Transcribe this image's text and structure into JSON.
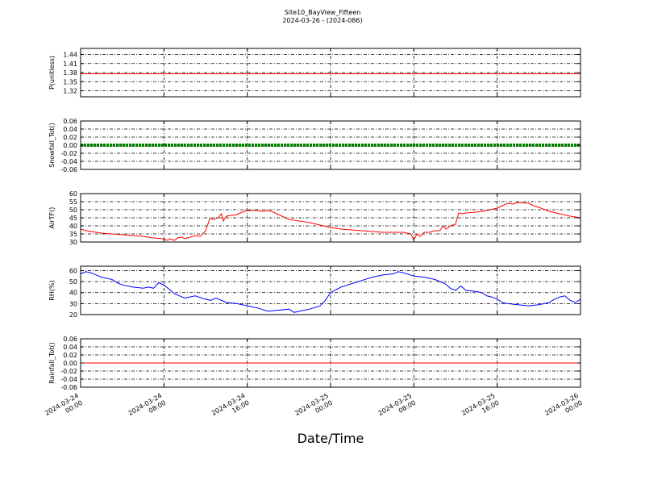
{
  "title": "Site10_BayView_Fifteen",
  "subtitle": "2024-03-26 - (2024-086)",
  "xlabel": "Date/Time",
  "chart_data": {
    "type": "line",
    "x_ticks": [
      [
        "2024-03-24",
        "00:00"
      ],
      [
        "2024-03-24",
        "08:00"
      ],
      [
        "2024-03-24",
        "16:00"
      ],
      [
        "2024-03-25",
        "00:00"
      ],
      [
        "2024-03-25",
        "08:00"
      ],
      [
        "2024-03-25",
        "16:00"
      ],
      [
        "2024-03-26",
        "00:00"
      ]
    ],
    "x_range_hours": [
      0,
      48
    ],
    "grid": true,
    "panels": [
      {
        "ylabel": "P(unitless)",
        "color": "#ff0000",
        "marker": "line",
        "ylim": [
          1.3,
          1.46
        ],
        "yticks": [
          "1.44",
          "1.41",
          "1.38",
          "1.35",
          "1.32"
        ],
        "ytick_values": [
          1.44,
          1.41,
          1.38,
          1.35,
          1.32
        ],
        "gridlines": [
          1.44,
          1.41,
          1.38,
          1.35,
          1.32
        ],
        "points": [
          [
            0,
            1.376
          ],
          [
            48,
            1.376
          ]
        ]
      },
      {
        "ylabel": "Snowfall_Tot()",
        "color": "#008000",
        "marker": "thick",
        "ylim": [
          -0.06,
          0.06
        ],
        "yticks": [
          "0.06",
          "0.04",
          "0.02",
          "0.00",
          "-0.02",
          "-0.04",
          "-0.06"
        ],
        "ytick_values": [
          0.06,
          0.04,
          0.02,
          0.0,
          -0.02,
          -0.04,
          -0.06
        ],
        "gridlines": [
          0.04,
          0.02,
          0.0,
          -0.02,
          -0.04
        ],
        "points": [
          [
            0,
            0
          ],
          [
            48,
            0
          ]
        ]
      },
      {
        "ylabel": "AirTF()",
        "color": "#ff0000",
        "marker": "line",
        "ylim": [
          30,
          60
        ],
        "yticks": [
          "60",
          "55",
          "50",
          "45",
          "40",
          "35",
          "30"
        ],
        "ytick_values": [
          60,
          55,
          50,
          45,
          40,
          35,
          30
        ],
        "gridlines": [
          55,
          50,
          45,
          40,
          35
        ],
        "points": [
          [
            0,
            38
          ],
          [
            0.5,
            37
          ],
          [
            1,
            36.5
          ],
          [
            2,
            35.5
          ],
          [
            3,
            35
          ],
          [
            4,
            34.5
          ],
          [
            5,
            34
          ],
          [
            6,
            33.5
          ],
          [
            7,
            32.5
          ],
          [
            8,
            32
          ],
          [
            8.3,
            31
          ],
          [
            8.6,
            32
          ],
          [
            9,
            31
          ],
          [
            9.3,
            32.5
          ],
          [
            9.7,
            33
          ],
          [
            10,
            32
          ],
          [
            10.5,
            33
          ],
          [
            11,
            34
          ],
          [
            11.5,
            33.5
          ],
          [
            12,
            37
          ],
          [
            12.4,
            44.5
          ],
          [
            12.8,
            44
          ],
          [
            13.2,
            45
          ],
          [
            13.5,
            47.5
          ],
          [
            13.7,
            43
          ],
          [
            14,
            46
          ],
          [
            14.5,
            46.5
          ],
          [
            15,
            47
          ],
          [
            15.5,
            48.5
          ],
          [
            16,
            49.5
          ],
          [
            17,
            49.5
          ],
          [
            17.5,
            49
          ],
          [
            18,
            49.5
          ],
          [
            18.5,
            48.5
          ],
          [
            19,
            47
          ],
          [
            19.5,
            45.5
          ],
          [
            20,
            44
          ],
          [
            21,
            43
          ],
          [
            22,
            42
          ],
          [
            23,
            40.5
          ],
          [
            24,
            39
          ],
          [
            25,
            38
          ],
          [
            26,
            37.5
          ],
          [
            27,
            37
          ],
          [
            28,
            36.5
          ],
          [
            29,
            36
          ],
          [
            30,
            36
          ],
          [
            31,
            36
          ],
          [
            31.7,
            35
          ],
          [
            32,
            31.5
          ],
          [
            32.3,
            35
          ],
          [
            32.6,
            33.5
          ],
          [
            33,
            36
          ],
          [
            33.5,
            36
          ],
          [
            34,
            37
          ],
          [
            34.5,
            37
          ],
          [
            34.8,
            40
          ],
          [
            35.1,
            38
          ],
          [
            35.5,
            40
          ],
          [
            36,
            41
          ],
          [
            36.3,
            48
          ],
          [
            36.6,
            47.5
          ],
          [
            37,
            48
          ],
          [
            38,
            48.5
          ],
          [
            39,
            49.5
          ],
          [
            40,
            51
          ],
          [
            40.5,
            52.5
          ],
          [
            41,
            54
          ],
          [
            41.5,
            53.5
          ],
          [
            42,
            54.5
          ],
          [
            43,
            54
          ],
          [
            43.5,
            52.5
          ],
          [
            44,
            51.5
          ],
          [
            45,
            49
          ],
          [
            46,
            47.5
          ],
          [
            47,
            46
          ],
          [
            48,
            45
          ]
        ]
      },
      {
        "ylabel": "RH(%)",
        "color": "#0000ff",
        "marker": "line",
        "ylim": [
          20,
          64
        ],
        "yticks": [
          "60",
          "50",
          "40",
          "30",
          "20"
        ],
        "ytick_values": [
          60,
          50,
          40,
          30,
          20
        ],
        "gridlines": [
          60,
          50,
          40,
          30
        ],
        "points": [
          [
            0,
            57
          ],
          [
            0.5,
            59
          ],
          [
            1,
            58
          ],
          [
            1.5,
            56
          ],
          [
            2,
            54
          ],
          [
            3,
            52
          ],
          [
            3.5,
            49
          ],
          [
            4,
            47
          ],
          [
            5,
            45
          ],
          [
            6,
            44
          ],
          [
            6.5,
            45
          ],
          [
            7,
            44
          ],
          [
            7.5,
            49
          ],
          [
            8,
            47
          ],
          [
            8.5,
            43
          ],
          [
            9,
            39
          ],
          [
            9.5,
            37
          ],
          [
            10,
            35
          ],
          [
            11,
            37
          ],
          [
            12,
            34
          ],
          [
            12.5,
            33
          ],
          [
            13,
            35
          ],
          [
            14,
            31
          ],
          [
            15,
            30
          ],
          [
            16,
            28
          ],
          [
            16.5,
            27
          ],
          [
            17,
            26
          ],
          [
            18,
            23
          ],
          [
            19,
            24
          ],
          [
            20,
            25
          ],
          [
            20.5,
            22
          ],
          [
            21,
            23
          ],
          [
            22,
            25
          ],
          [
            23,
            28
          ],
          [
            23.5,
            33
          ],
          [
            24,
            40
          ],
          [
            25,
            45
          ],
          [
            26,
            48
          ],
          [
            27,
            51
          ],
          [
            28,
            54
          ],
          [
            29,
            56
          ],
          [
            30,
            57
          ],
          [
            30.5,
            59
          ],
          [
            31,
            58
          ],
          [
            32,
            55
          ],
          [
            33,
            54
          ],
          [
            34,
            52
          ],
          [
            35,
            48
          ],
          [
            35.5,
            44
          ],
          [
            36,
            42
          ],
          [
            36.5,
            46
          ],
          [
            37,
            42
          ],
          [
            38,
            41
          ],
          [
            38.5,
            40
          ],
          [
            39,
            37
          ],
          [
            39.5,
            36
          ],
          [
            40,
            34
          ],
          [
            40.5,
            31
          ],
          [
            41,
            30
          ],
          [
            42,
            29
          ],
          [
            43,
            28
          ],
          [
            44,
            29
          ],
          [
            45,
            31
          ],
          [
            45.5,
            34
          ],
          [
            46,
            36
          ],
          [
            46.5,
            37
          ],
          [
            47,
            33
          ],
          [
            47.5,
            31
          ],
          [
            48,
            34
          ]
        ]
      },
      {
        "ylabel": "Rainfall_Tot()",
        "color": "#ff0000",
        "marker": "line",
        "ylim": [
          -0.06,
          0.06
        ],
        "yticks": [
          "0.06",
          "0.04",
          "0.02",
          "0.00",
          "-0.02",
          "-0.04",
          "-0.06"
        ],
        "ytick_values": [
          0.06,
          0.04,
          0.02,
          0.0,
          -0.02,
          -0.04,
          -0.06
        ],
        "gridlines": [
          0.04,
          0.02,
          0.0,
          -0.02,
          -0.04
        ],
        "points": [
          [
            0,
            0
          ],
          [
            48,
            0
          ]
        ]
      }
    ]
  }
}
